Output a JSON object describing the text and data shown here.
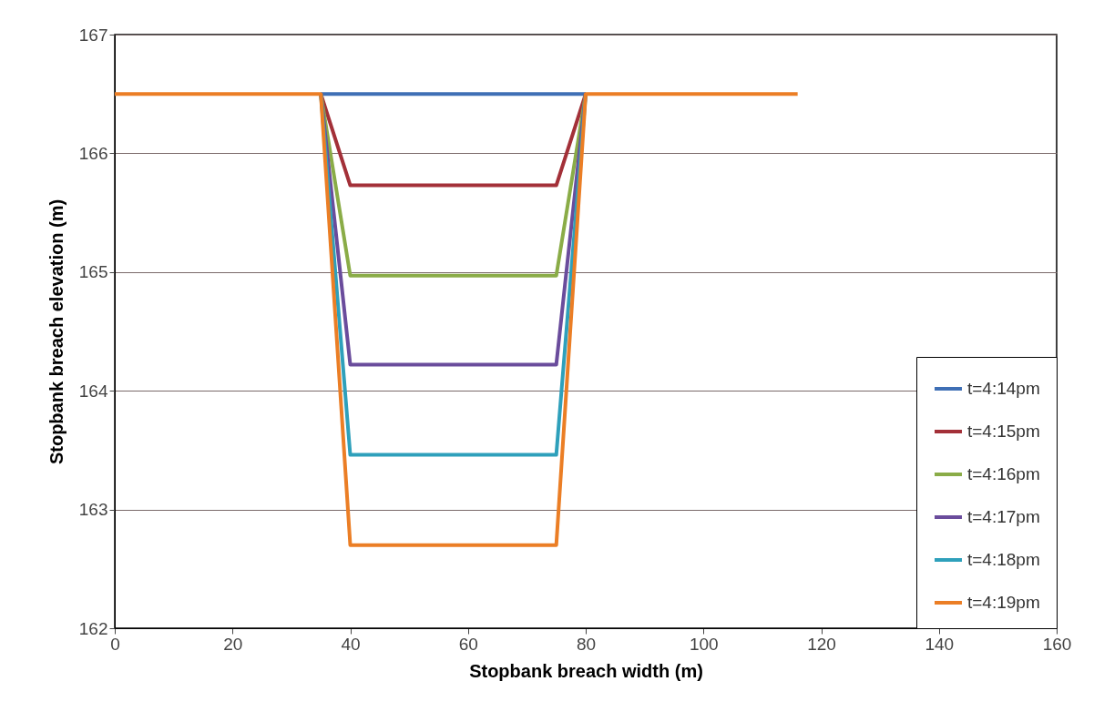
{
  "chart_data": {
    "type": "line",
    "xlabel": "Stopbank breach width (m)",
    "ylabel": "Stopbank breach elevation (m)",
    "xlim": [
      0,
      160
    ],
    "xticks": [
      0,
      20,
      40,
      60,
      80,
      100,
      120,
      140,
      160
    ],
    "ylim": [
      162,
      167
    ],
    "yticks": [
      162,
      163,
      164,
      165,
      166,
      167
    ],
    "x": [
      0,
      35,
      40,
      75,
      80,
      116
    ],
    "series": [
      {
        "name": "t=4:14pm",
        "color": "#3f6fb5",
        "x": [
          35,
          80
        ],
        "values": [
          166.5,
          166.5
        ]
      },
      {
        "name": "t=4:15pm",
        "color": "#a33038",
        "x": [
          35,
          40,
          75,
          80
        ],
        "values": [
          166.5,
          165.73,
          165.73,
          166.5
        ]
      },
      {
        "name": "t=4:16pm",
        "color": "#8aac47",
        "x": [
          35,
          40,
          75,
          80
        ],
        "values": [
          166.5,
          164.97,
          164.97,
          166.5
        ]
      },
      {
        "name": "t=4:17pm",
        "color": "#6a4c9c",
        "x": [
          35,
          40,
          75,
          80
        ],
        "values": [
          166.5,
          164.22,
          164.22,
          166.5
        ]
      },
      {
        "name": "t=4:18pm",
        "color": "#2ea0bb",
        "x": [
          35,
          40,
          75,
          80
        ],
        "values": [
          166.5,
          163.46,
          163.46,
          166.5
        ]
      },
      {
        "name": "t=4:19pm",
        "color": "#eb7e25",
        "values": [
          166.5,
          166.5,
          162.7,
          162.7,
          166.5,
          166.5
        ]
      }
    ],
    "grid": "y",
    "legend": "bottom right",
    "marker": "none",
    "line_style": "solid"
  }
}
